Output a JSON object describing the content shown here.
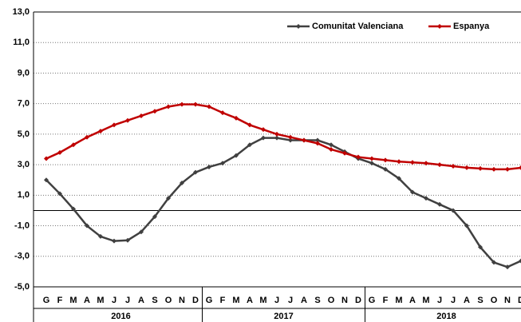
{
  "chart_data": {
    "type": "line",
    "categories": [
      "G",
      "F",
      "M",
      "A",
      "M",
      "J",
      "J",
      "A",
      "S",
      "O",
      "N",
      "D",
      "G",
      "F",
      "M",
      "A",
      "M",
      "J",
      "J",
      "A",
      "S",
      "O",
      "N",
      "D",
      "G",
      "F",
      "M",
      "A",
      "M",
      "J",
      "J",
      "A",
      "S",
      "O",
      "N",
      "D"
    ],
    "years": [
      "2016",
      "2017",
      "2018"
    ],
    "series": [
      {
        "name": "Comunitat Valenciana",
        "color": "#404040",
        "values": [
          2.0,
          1.1,
          0.1,
          -1.0,
          -1.7,
          -2.0,
          -1.95,
          -1.4,
          -0.4,
          0.8,
          1.8,
          2.5,
          2.85,
          3.1,
          3.6,
          4.3,
          4.75,
          4.75,
          4.6,
          4.6,
          4.6,
          4.3,
          3.85,
          3.4,
          3.1,
          2.7,
          2.1,
          1.2,
          0.8,
          0.4,
          0.0,
          -1.0,
          -2.4,
          -3.4,
          -3.7,
          -3.3
        ]
      },
      {
        "name": "Espanya",
        "color": "#c00000",
        "values": [
          3.4,
          3.8,
          4.3,
          4.8,
          5.2,
          5.6,
          5.9,
          6.2,
          6.5,
          6.8,
          6.95,
          6.95,
          6.8,
          6.4,
          6.05,
          5.6,
          5.3,
          5.0,
          4.8,
          4.6,
          4.4,
          4.0,
          3.75,
          3.5,
          3.4,
          3.3,
          3.2,
          3.15,
          3.1,
          3.0,
          2.9,
          2.8,
          2.75,
          2.7,
          2.7,
          2.8
        ]
      }
    ],
    "ylim": [
      -5,
      13
    ],
    "yticks": [
      {
        "value": -5,
        "label": "-5,0"
      },
      {
        "value": -3,
        "label": "-3,0"
      },
      {
        "value": -1,
        "label": "-1,0"
      },
      {
        "value": 1,
        "label": "1,0"
      },
      {
        "value": 3,
        "label": "3,0"
      },
      {
        "value": 5,
        "label": "5,0"
      },
      {
        "value": 7,
        "label": "7,0"
      },
      {
        "value": 9,
        "label": "9,0"
      },
      {
        "value": 11,
        "label": "11,0"
      },
      {
        "value": 13,
        "label": "13,0"
      }
    ],
    "grid": true,
    "legend": "top-right"
  }
}
